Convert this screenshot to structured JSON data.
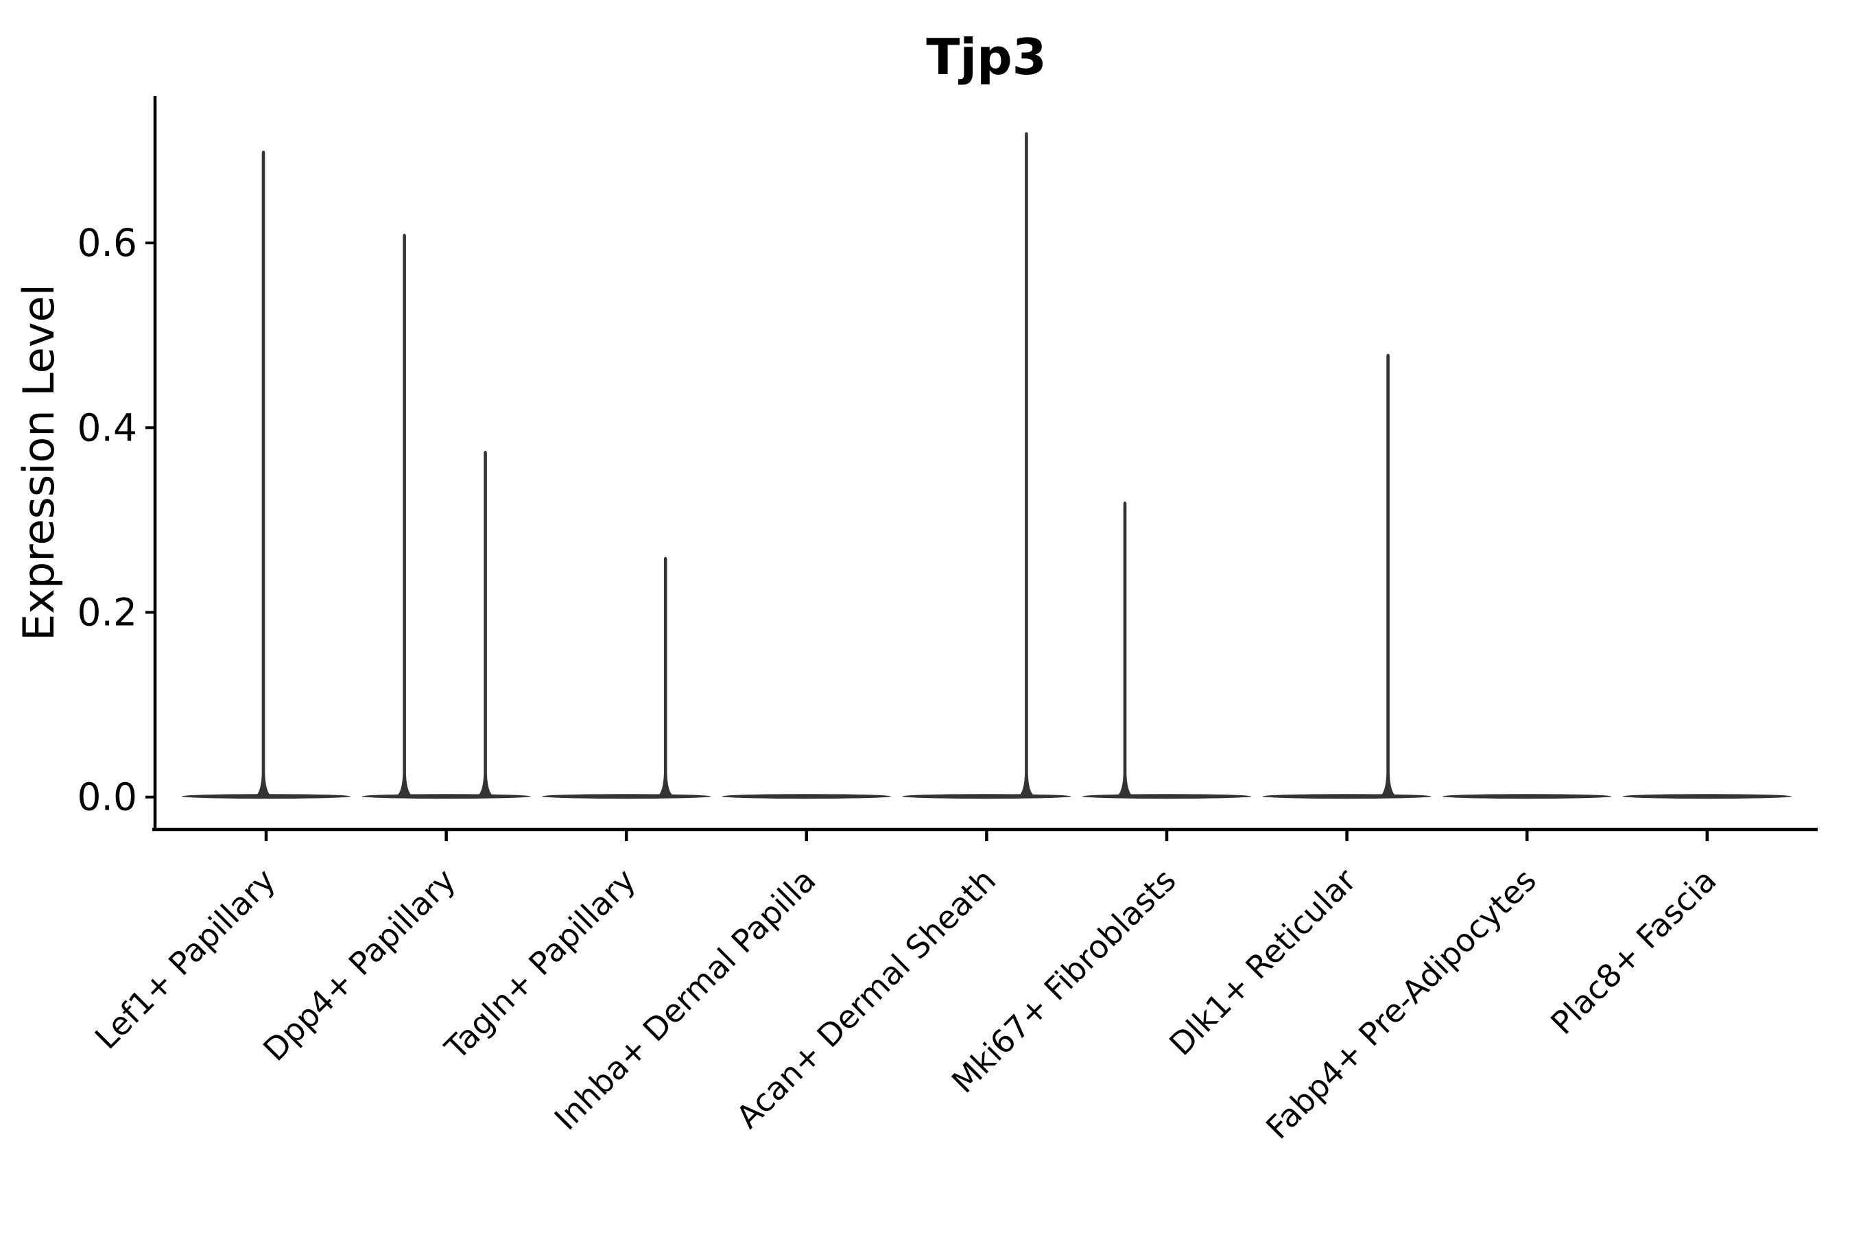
{
  "title": "Tjp3",
  "y_axis": {
    "label": "Expression Level",
    "tick_labels": [
      "0.0",
      "0.2",
      "0.4",
      "0.6"
    ]
  },
  "colors": {
    "violin": "#333333",
    "axis": "#000000",
    "background": "#ffffff",
    "text": "#000000"
  },
  "chart_data": {
    "type": "violin",
    "title": "Tjp3",
    "xlabel": "",
    "ylabel": "Expression Level",
    "ylim": [
      0,
      0.76
    ],
    "yticks": [
      0.0,
      0.2,
      0.4,
      0.6
    ],
    "grid": false,
    "legend": "none",
    "description": "Single-gene violin plot; every cluster has a dense flat violin body at expression 0, some clusters show thin spikes up to the maximum expression value.",
    "categories": [
      "Lef1+ Papillary",
      "Dpp4+ Papillary",
      "Tagln+ Papillary",
      "Inhba+ Dermal Papilla",
      "Acan+ Dermal Sheath",
      "Mki67+ Fibroblasts",
      "Dlk1+ Reticular",
      "Fabp4+ Pre-Adipocytes",
      "Plac8+ Fascia"
    ],
    "series": [
      {
        "name": "Lef1+ Papillary",
        "baseline_value": 0,
        "spikes": [
          {
            "value": 0.7,
            "dx": -4
          }
        ]
      },
      {
        "name": "Dpp4+ Papillary",
        "baseline_value": 0,
        "spikes": [
          {
            "value": 0.61,
            "dx": -61
          },
          {
            "value": 0.375,
            "dx": 57
          }
        ]
      },
      {
        "name": "Tagln+ Papillary",
        "baseline_value": 0,
        "spikes": [
          {
            "value": 0.26,
            "dx": 57
          }
        ]
      },
      {
        "name": "Inhba+ Dermal Papilla",
        "baseline_value": 0,
        "spikes": []
      },
      {
        "name": "Acan+ Dermal Sheath",
        "baseline_value": 0,
        "spikes": [
          {
            "value": 0.72,
            "dx": 58
          }
        ]
      },
      {
        "name": "Mki67+ Fibroblasts",
        "baseline_value": 0,
        "spikes": [
          {
            "value": 0.32,
            "dx": -61
          }
        ]
      },
      {
        "name": "Dlk1+ Reticular",
        "baseline_value": 0,
        "spikes": [
          {
            "value": 0.48,
            "dx": 60
          }
        ]
      },
      {
        "name": "Fabp4+ Pre-Adipocytes",
        "baseline_value": 0,
        "spikes": []
      },
      {
        "name": "Plac8+ Fascia",
        "baseline_value": 0,
        "spikes": []
      }
    ],
    "max_values": [
      0.7,
      0.61,
      0.26,
      0,
      0.72,
      0.32,
      0.48,
      0,
      0
    ]
  }
}
